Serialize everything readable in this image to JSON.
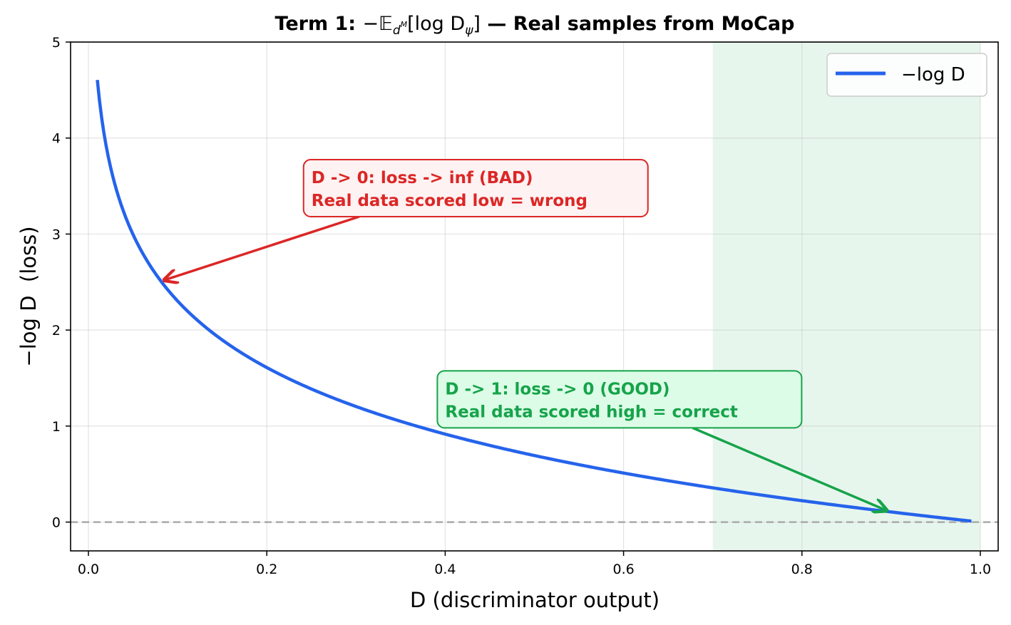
{
  "chart_data": {
    "type": "line",
    "title": {
      "prefix": "Term 1: ",
      "math": "−𝔼",
      "math_sub": "d",
      "math_subsup": "M",
      "math_rest": "[log D",
      "math_rest_sub": "ψ",
      "math_close": "]",
      "suffix": " — Real samples from MoCap"
    },
    "xlabel": "D (discriminator output)",
    "ylabel": {
      "math": "−log D",
      "text": "  (loss)"
    },
    "xlim": [
      -0.02,
      1.02
    ],
    "ylim": [
      -0.3,
      5.0
    ],
    "xticks": [
      {
        "value": 0.0,
        "label": "0.0"
      },
      {
        "value": 0.2,
        "label": "0.2"
      },
      {
        "value": 0.4,
        "label": "0.4"
      },
      {
        "value": 0.6,
        "label": "0.6"
      },
      {
        "value": 0.8,
        "label": "0.8"
      },
      {
        "value": 1.0,
        "label": "1.0"
      }
    ],
    "yticks": [
      {
        "value": 0,
        "label": "0"
      },
      {
        "value": 1,
        "label": "1"
      },
      {
        "value": 2,
        "label": "2"
      },
      {
        "value": 3,
        "label": "3"
      },
      {
        "value": 4,
        "label": "4"
      },
      {
        "value": 5,
        "label": "5"
      }
    ],
    "grid": true,
    "series": [
      {
        "name": "−log D",
        "color": "#2563eb",
        "function": "-ln(x)",
        "x_range": [
          0.01,
          0.99
        ],
        "x": [
          0.01,
          0.02,
          0.03,
          0.05,
          0.08,
          0.1,
          0.15,
          0.2,
          0.3,
          0.4,
          0.5,
          0.6,
          0.7,
          0.8,
          0.9,
          0.99
        ],
        "y": [
          4.61,
          3.91,
          3.51,
          3.0,
          2.53,
          2.3,
          1.9,
          1.61,
          1.2,
          0.92,
          0.69,
          0.51,
          0.36,
          0.22,
          0.11,
          0.01
        ]
      }
    ],
    "reference_line": {
      "y": 0,
      "color": "#aaaaaa",
      "style": "dashed"
    },
    "shaded_region": {
      "x_range": [
        0.7,
        1.0
      ],
      "color": "#16a34a"
    },
    "legend": {
      "placement": "top-right",
      "label": "−log D"
    },
    "annotations": [
      {
        "lines": [
          "D -> 0: loss -> inf (BAD)",
          "Real data scored low = wrong"
        ],
        "color": "#dc2626",
        "bg": "#fef2f2",
        "text_at": [
          0.25,
          3.3
        ],
        "arrow_to": [
          0.085,
          2.52
        ]
      },
      {
        "lines": [
          "D -> 1: loss -> 0 (GOOD)",
          "Real data scored high = correct"
        ],
        "color": "#16a34a",
        "bg": "#dcfce7",
        "text_at": [
          0.4,
          1.1
        ],
        "arrow_to": [
          0.895,
          0.12
        ]
      }
    ]
  }
}
